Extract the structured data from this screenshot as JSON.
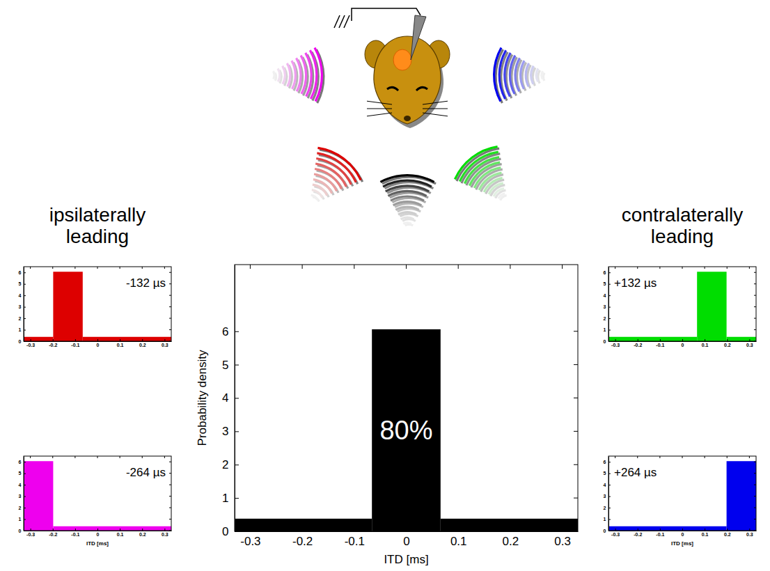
{
  "group_labels": [
    "ipsilaterally leading",
    "contralaterally leading"
  ],
  "chart_data": [
    {
      "type": "histogram",
      "bins": [
        -0.33,
        -0.066,
        0.066,
        0.33
      ],
      "counts": [
        0.379,
        6.06,
        0.379
      ],
      "color": "#000000",
      "annotation": "80%",
      "x_label": "ITD [ms]",
      "y_label": "Probability density",
      "xlim": [
        -0.33,
        0.33
      ],
      "xticks": [
        -0.3,
        -0.2,
        -0.1,
        0,
        0.1,
        0.2,
        0.3
      ],
      "ylim": [
        0,
        8
      ],
      "yticks": [
        0,
        1,
        2,
        3,
        4,
        5,
        6
      ]
    },
    {
      "type": "histogram",
      "bins": [
        -0.33,
        -0.198,
        -0.066,
        0.33
      ],
      "counts": [
        0.379,
        6.06,
        0.379
      ],
      "color": "#dd0000",
      "annotation": "-132 µs",
      "xlim": [
        -0.33,
        0.33
      ],
      "xticks": [
        -0.3,
        -0.2,
        -0.1,
        0,
        0.1,
        0.2,
        0.3
      ],
      "ylim": [
        0,
        6.5
      ],
      "yticks": [
        0,
        1,
        2,
        3,
        4,
        5,
        6
      ]
    },
    {
      "type": "histogram",
      "bins": [
        -0.33,
        -0.198,
        0.33
      ],
      "counts": [
        6.06,
        0.379
      ],
      "color": "#ee00ee",
      "annotation": "-264 µs",
      "x_label": "ITD [ms]",
      "xlim": [
        -0.33,
        0.33
      ],
      "xticks": [
        -0.3,
        -0.2,
        -0.1,
        0,
        0.1,
        0.2,
        0.3
      ],
      "ylim": [
        0,
        6.5
      ],
      "yticks": [
        0,
        1,
        2,
        3,
        4,
        5,
        6
      ]
    },
    {
      "type": "histogram",
      "bins": [
        -0.33,
        0.066,
        0.198,
        0.33
      ],
      "counts": [
        0.379,
        6.06,
        0.379
      ],
      "color": "#00dd00",
      "annotation": "+132 µs",
      "xlim": [
        -0.33,
        0.33
      ],
      "xticks": [
        -0.3,
        -0.2,
        -0.1,
        0,
        0.1,
        0.2,
        0.3
      ],
      "ylim": [
        0,
        6.5
      ],
      "yticks": [
        0,
        1,
        2,
        3,
        4,
        5,
        6
      ]
    },
    {
      "type": "histogram",
      "bins": [
        -0.33,
        0.198,
        0.33
      ],
      "counts": [
        0.379,
        6.06
      ],
      "color": "#0000ee",
      "annotation": "+264 µs",
      "x_label": "ITD [ms]",
      "xlim": [
        -0.33,
        0.33
      ],
      "xticks": [
        -0.3,
        -0.2,
        -0.1,
        0,
        0.1,
        0.2,
        0.3
      ],
      "ylim": [
        0,
        6.5
      ],
      "yticks": [
        0,
        1,
        2,
        3,
        4,
        5,
        6
      ]
    }
  ]
}
